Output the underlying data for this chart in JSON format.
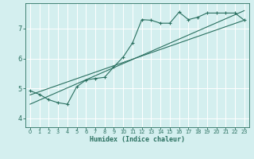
{
  "xlabel": "Humidex (Indice chaleur)",
  "bg_color": "#d4efef",
  "grid_color": "#ffffff",
  "line_color": "#2a7060",
  "xlim": [
    -0.5,
    23.5
  ],
  "ylim": [
    3.7,
    7.85
  ],
  "xticks": [
    0,
    1,
    2,
    3,
    4,
    5,
    6,
    7,
    8,
    9,
    10,
    11,
    12,
    13,
    14,
    15,
    16,
    17,
    18,
    19,
    20,
    21,
    22,
    23
  ],
  "yticks": [
    4,
    5,
    6,
    7
  ],
  "curve1_x": [
    0,
    1,
    2,
    3,
    4,
    5,
    6,
    7,
    8,
    9,
    10,
    11,
    12,
    13,
    14,
    15,
    16,
    17,
    18,
    19,
    20,
    21,
    22,
    23
  ],
  "curve1_y": [
    4.92,
    4.8,
    4.62,
    4.52,
    4.47,
    5.05,
    5.28,
    5.33,
    5.37,
    5.72,
    6.05,
    6.52,
    7.3,
    7.28,
    7.18,
    7.18,
    7.55,
    7.3,
    7.38,
    7.52,
    7.52,
    7.52,
    7.52,
    7.28
  ],
  "line1_x": [
    0,
    23
  ],
  "line1_y": [
    4.78,
    7.28
  ],
  "line2_x": [
    0,
    23
  ],
  "line2_y": [
    4.47,
    7.6
  ]
}
